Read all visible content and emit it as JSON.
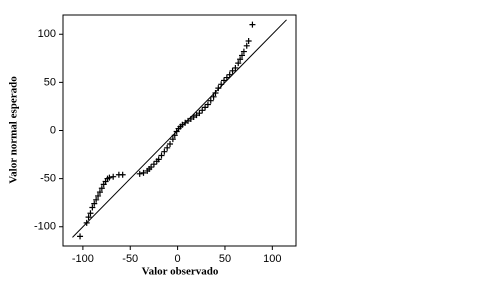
{
  "chart_data": {
    "type": "scatter",
    "x_label": "Valor observado",
    "y_label": "Valor normal esperado",
    "xlim": [
      -121,
      125
    ],
    "ylim": [
      -120,
      120
    ],
    "xticks": [
      -100,
      -50,
      0,
      50,
      100
    ],
    "yticks": [
      -100,
      -50,
      0,
      50,
      100
    ],
    "color": "#000000",
    "marker": "+",
    "x": [
      -103,
      -96,
      -94,
      -92,
      -90,
      -88,
      -86,
      -84,
      -82,
      -80,
      -78,
      -76,
      -74,
      -72,
      -68,
      -62,
      -58,
      -40,
      -36,
      -32,
      -30,
      -28,
      -25,
      -22,
      -20,
      -17,
      -14,
      -11,
      -8,
      -5,
      -3,
      -1,
      1,
      3,
      5,
      8,
      11,
      14,
      17,
      20,
      23,
      26,
      29,
      32,
      35,
      38,
      40,
      43,
      46,
      49,
      52,
      55,
      58,
      61,
      64,
      66,
      68,
      70,
      73,
      75,
      79
    ],
    "values": [
      -110,
      -96,
      -90,
      -86,
      -80,
      -76,
      -72,
      -68,
      -64,
      -60,
      -56,
      -53,
      -50,
      -49,
      -48,
      -46,
      -46,
      -45,
      -44,
      -42,
      -40,
      -38,
      -35,
      -32,
      -30,
      -26,
      -22,
      -18,
      -14,
      -9,
      -5,
      -1,
      2,
      4,
      6,
      8,
      10,
      12,
      14,
      16,
      18,
      21,
      24,
      27,
      31,
      35,
      39,
      44,
      48,
      52,
      55,
      58,
      62,
      65,
      70,
      74,
      78,
      82,
      88,
      93,
      110
    ],
    "reference_line": {
      "x": [
        -111,
        115
      ],
      "y": [
        -111,
        115
      ]
    }
  }
}
